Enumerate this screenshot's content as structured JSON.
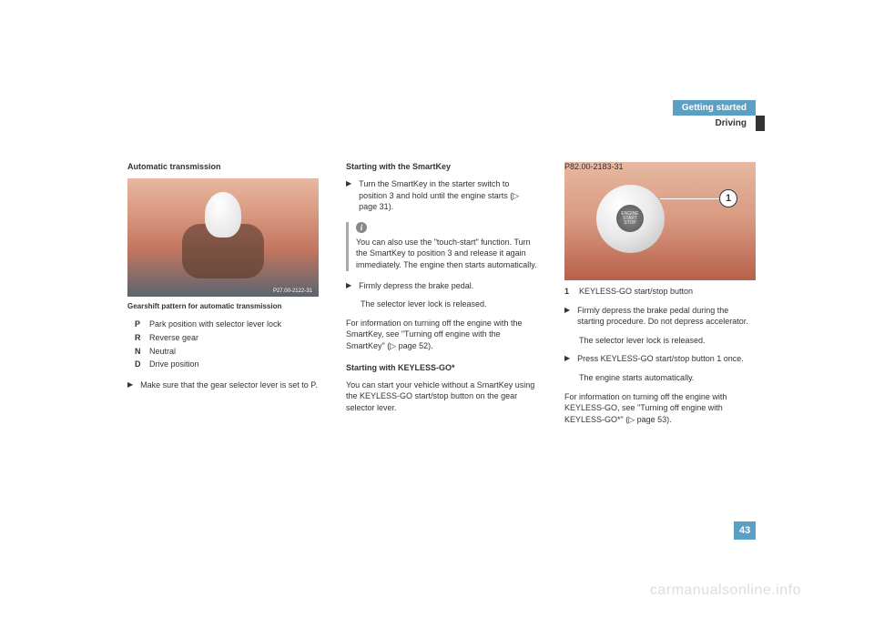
{
  "header": {
    "section": "Getting started",
    "subsection": "Driving"
  },
  "col1": {
    "title": "Automatic transmission",
    "image_ref": "P27.00-2122-31",
    "fig_caption": "Gearshift pattern for automatic transmission",
    "defs": [
      {
        "key": "P",
        "text": "Park position with selector lever lock"
      },
      {
        "key": "R",
        "text": "Reverse gear"
      },
      {
        "key": "N",
        "text": "Neutral"
      },
      {
        "key": "D",
        "text": "Drive position"
      }
    ],
    "bullet1": "Make sure that the gear selector lever is set to P."
  },
  "col2": {
    "title": "Starting with the SmartKey",
    "bullet1": "Turn the SmartKey in the starter switch to position 3 and hold until the engine starts (▷ page 31).",
    "info": "You can also use the \"touch-start\" function. Turn the SmartKey to position 3 and release it again immediately. The engine then starts automatically.",
    "bullet2": "Firmly depress the brake pedal.",
    "result2": "The selector lever lock is released.",
    "para1": "For information on turning off the engine with the SmartKey, see \"Turning off engine with the SmartKey\" (▷ page 52).",
    "subtitle": "Starting with KEYLESS-GO*",
    "para2": "You can start your vehicle without a SmartKey using the KEYLESS-GO start/stop button on the gear selector lever."
  },
  "col3": {
    "image_ref": "P82.00-2183-31",
    "callout": "1",
    "button_text_top": "ENGINE",
    "button_text_mid": "START",
    "button_text_bot": "STOP",
    "caption_key": "1",
    "caption_text": "KEYLESS-GO start/stop button",
    "bullet1": "Firmly depress the brake pedal during the starting procedure. Do not depress accelerator.",
    "result1": "The selector lever lock is released.",
    "bullet2": "Press KEYLESS-GO start/stop button 1 once.",
    "result2": "The engine starts automatically.",
    "para1": "For information on turning off the engine with KEYLESS-GO, see \"Turning off engine with KEYLESS-GO*\" (▷ page 53)."
  },
  "page_number": "43",
  "watermark": "carmanualsonline.info",
  "colors": {
    "accent": "#5a9fc4"
  }
}
